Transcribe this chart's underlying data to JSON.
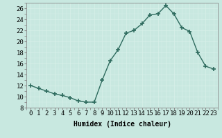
{
  "x": [
    0,
    1,
    2,
    3,
    4,
    5,
    6,
    7,
    8,
    9,
    10,
    11,
    12,
    13,
    14,
    15,
    16,
    17,
    18,
    19,
    20,
    21,
    22,
    23
  ],
  "y": [
    12,
    11.5,
    11,
    10.5,
    10.2,
    9.8,
    9.2,
    9.0,
    9.0,
    13.0,
    16.5,
    18.5,
    21.5,
    22.0,
    23.2,
    24.8,
    25.0,
    26.5,
    25.0,
    22.5,
    21.8,
    18.0,
    15.5,
    15.0
  ],
  "line_color": "#2e6b5e",
  "marker": "+",
  "marker_size": 4,
  "bg_color": "#c8e8e0",
  "grid_color": "#e8f8f4",
  "spine_color": "#888888",
  "xlabel": "Humidex (Indice chaleur)",
  "xlim": [
    -0.5,
    23.5
  ],
  "ylim": [
    8,
    27
  ],
  "yticks": [
    8,
    10,
    12,
    14,
    16,
    18,
    20,
    22,
    24,
    26
  ],
  "xticks": [
    0,
    1,
    2,
    3,
    4,
    5,
    6,
    7,
    8,
    9,
    10,
    11,
    12,
    13,
    14,
    15,
    16,
    17,
    18,
    19,
    20,
    21,
    22,
    23
  ],
  "xlabel_fontsize": 7,
  "tick_fontsize": 6.5,
  "line_width": 1.0,
  "marker_lw": 1.2
}
